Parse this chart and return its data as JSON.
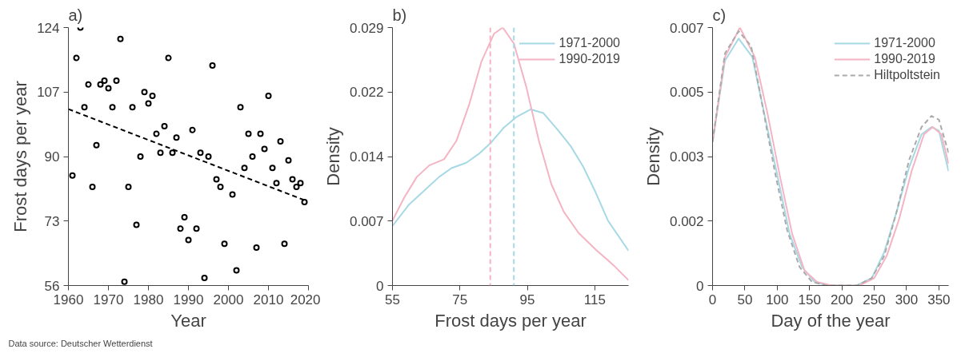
{
  "chart_data": [
    {
      "type": "scatter",
      "title": "a)",
      "xlabel": "Year",
      "ylabel": "Frost days per year",
      "marker": "circle",
      "grid": false,
      "legend": false,
      "xlim": [
        1960,
        2020
      ],
      "xticks": [
        1960,
        1970,
        1980,
        1990,
        2000,
        2010,
        2020
      ],
      "ylim": [
        56,
        124
      ],
      "yticks": [
        56,
        73,
        90,
        107,
        124
      ],
      "series": [
        {
          "color": "#000000",
          "x": [
            1961,
            1962,
            1963,
            1964,
            1965,
            1966,
            1967,
            1968,
            1969,
            1970,
            1971,
            1972,
            1973,
            1974,
            1975,
            1976,
            1977,
            1978,
            1979,
            1980,
            1981,
            1982,
            1983,
            1984,
            1985,
            1986,
            1987,
            1988,
            1989,
            1990,
            1991,
            1992,
            1993,
            1994,
            1995,
            1996,
            1997,
            1998,
            1999,
            2001,
            2002,
            2003,
            2004,
            2005,
            2006,
            2007,
            2008,
            2009,
            2010,
            2011,
            2012,
            2013,
            2014,
            2015,
            2016,
            2017,
            2018,
            2019
          ],
          "values": [
            85,
            116,
            124,
            103,
            109,
            82,
            93,
            109,
            110,
            108,
            103,
            110,
            121,
            57,
            82,
            103,
            72,
            90,
            107,
            104,
            106,
            96,
            91,
            98,
            116,
            91,
            95,
            71,
            74,
            68,
            97,
            71,
            91,
            58,
            90,
            114,
            84,
            82,
            67,
            80,
            60,
            103,
            87,
            96,
            90,
            66,
            96,
            92,
            106,
            87,
            83,
            94,
            67,
            89,
            84,
            82,
            83,
            78
          ]
        },
        {
          "type": "line",
          "line_style": "dashed",
          "marker": "none",
          "color": "#000000",
          "x": [
            1960,
            2019
          ],
          "values": [
            102.5,
            78.5
          ]
        }
      ],
      "annotations": [
        "Data source: Deutscher Wetterdienst"
      ]
    },
    {
      "type": "line",
      "title": "b)",
      "xlabel": "Frost days per year",
      "ylabel": "Density",
      "grid": false,
      "legend": "top right",
      "marker": "none",
      "xlim": [
        55,
        125
      ],
      "xticks": [
        55,
        75,
        95,
        115
      ],
      "ylim": [
        0,
        0.029
      ],
      "yticks": [
        0,
        {
          "value": 0.00725,
          "label": "0.007"
        },
        {
          "value": 0.0145,
          "label": "0.014"
        },
        {
          "value": 0.02175,
          "label": "0.022"
        },
        0.029
      ],
      "series": [
        {
          "name": "1971-2000",
          "color": "#a6d9e3",
          "x": [
            55,
            59.9,
            65.1,
            68.8,
            72.5,
            76.9,
            80.6,
            84.3,
            87.9,
            91.6,
            96.0,
            99.7,
            104.2,
            107.8,
            111.5,
            115.2,
            118.9,
            125
          ],
          "values": [
            0.0067,
            0.0091,
            0.0109,
            0.0122,
            0.0132,
            0.0138,
            0.0148,
            0.0161,
            0.0177,
            0.0189,
            0.0198,
            0.0194,
            0.0174,
            0.0157,
            0.0134,
            0.0105,
            0.0073,
            0.0039
          ]
        },
        {
          "name": "1990-2019",
          "color": "#f4b4c4",
          "x": [
            55,
            58.5,
            62.2,
            65.9,
            70.3,
            74.0,
            77.7,
            81.4,
            85.1,
            87.7,
            91.0,
            94.7,
            98.4,
            102.1,
            105.8,
            110.2,
            115.4,
            120.5,
            125
          ],
          "values": [
            0.0073,
            0.0099,
            0.0122,
            0.0135,
            0.0142,
            0.0163,
            0.0203,
            0.0252,
            0.0283,
            0.029,
            0.0272,
            0.0223,
            0.0163,
            0.0114,
            0.0083,
            0.0059,
            0.004,
            0.0023,
            0.0006
          ]
        }
      ],
      "ref_lines": [
        {
          "axis": "x",
          "value": 84,
          "label": null,
          "color": "#f4b4c4",
          "line_style": "dashed"
        },
        {
          "axis": "x",
          "value": 91,
          "label": null,
          "color": "#a6d9e3",
          "line_style": "dashed"
        }
      ]
    },
    {
      "type": "line",
      "title": "c)",
      "xlabel": "Day of the year",
      "ylabel": "Density",
      "grid": false,
      "legend": "top right",
      "marker": "none",
      "xlim": [
        0,
        365
      ],
      "xticks": [
        0,
        50,
        100,
        150,
        200,
        250,
        300,
        350
      ],
      "ylim": [
        0,
        0.007
      ],
      "yticks": [
        0,
        {
          "value": 0.00175,
          "label": "0.002"
        },
        {
          "value": 0.0035,
          "label": "0.003"
        },
        {
          "value": 0.00525,
          "label": "0.005"
        },
        0.007
      ],
      "series": [
        {
          "name": "1971-2000",
          "color": "#a6d9e3",
          "x": [
            0,
            19.2,
            40.4,
            61.5,
            80.8,
            100,
            119.2,
            138.5,
            157.7,
            176.9,
            200,
            223.1,
            246.2,
            265.4,
            284.6,
            303.8,
            323.1,
            338.5,
            350,
            365
          ],
          "values": [
            0.0039,
            0.0061,
            0.0067,
            0.0062,
            0.0046,
            0.003,
            0.0014,
            0.0005,
            0.0001,
            0,
            0,
            0,
            0.0002,
            0.0009,
            0.002,
            0.0032,
            0.0041,
            0.0043,
            0.0042,
            0.0031
          ]
        },
        {
          "name": "1990-2019",
          "color": "#f4b4c4",
          "x": [
            0,
            19.2,
            42.3,
            65.4,
            84.6,
            103.8,
            123.1,
            142.3,
            161.5,
            184.6,
            203.8,
            226.9,
            250,
            269.2,
            288.5,
            307.7,
            326.9,
            340.4,
            353.8,
            365
          ],
          "values": [
            0.0039,
            0.0062,
            0.007,
            0.0062,
            0.0047,
            0.003,
            0.0014,
            0.0004,
            0.0001,
            0,
            0,
            0,
            0.0002,
            0.0008,
            0.0018,
            0.0031,
            0.0041,
            0.0043,
            0.0041,
            0.0033
          ]
        },
        {
          "name": "Hiltpoltstein",
          "color": "#aaaaaa",
          "line_style": "dashed",
          "x": [
            0,
            19.2,
            40.4,
            59.6,
            76.9,
            96.2,
            115.4,
            134.6,
            153.8,
            176.9,
            200,
            223.1,
            246.2,
            265.4,
            284.6,
            303.8,
            323.1,
            338.5,
            350,
            365
          ],
          "values": [
            0.0039,
            0.0063,
            0.0069,
            0.0065,
            0.0049,
            0.0031,
            0.0015,
            0.0005,
            0.0001,
            0,
            0,
            0,
            0.0002,
            0.0008,
            0.002,
            0.0034,
            0.0043,
            0.0046,
            0.0045,
            0.0036
          ]
        }
      ]
    }
  ]
}
